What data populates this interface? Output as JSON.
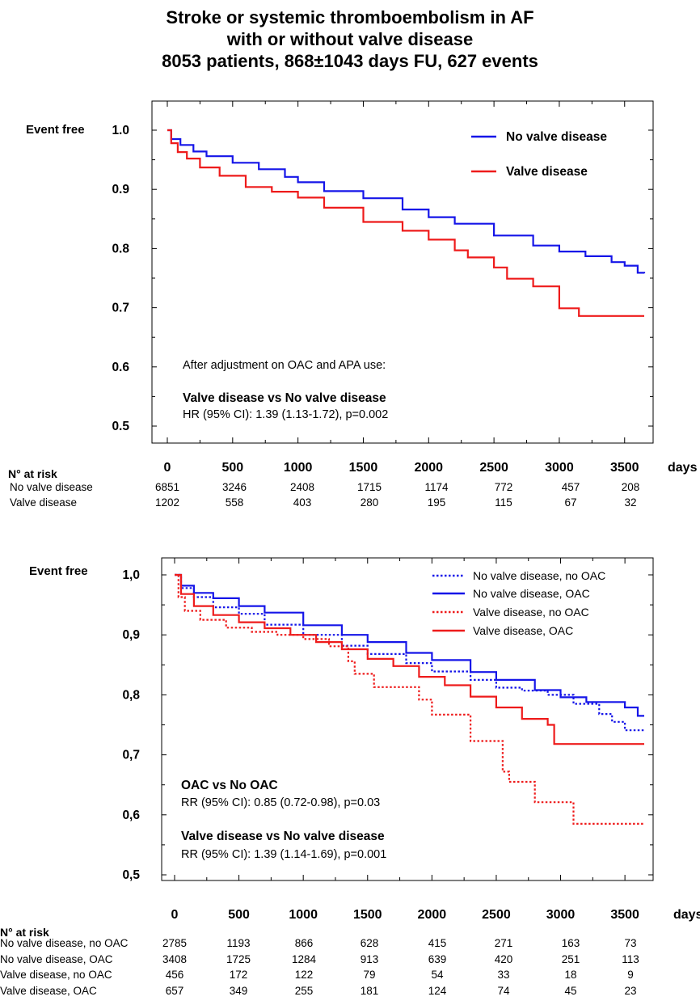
{
  "title": {
    "line1": "Stroke or systemic thromboembolism in AF",
    "line2": "with or without valve disease",
    "line3": "8053 patients, 868±1043 days FU, 627 events"
  },
  "colors": {
    "blue": "#1515e8",
    "red": "#ee1b1b"
  },
  "chart_data": [
    {
      "type": "line",
      "ylabel": "Event free",
      "xlabel": "days",
      "xlim": [
        0,
        3650
      ],
      "ylim": [
        0.5,
        1.0
      ],
      "y_tick_labels": [
        "1.0",
        "0.9",
        "0.8",
        "0.7",
        "0.6",
        "0.5"
      ],
      "x_tick_labels": [
        "0",
        "500",
        "1000",
        "1500",
        "2000",
        "2500",
        "3000",
        "3500"
      ],
      "legend_position": "top-right",
      "series": [
        {
          "name": "No valve disease",
          "color": "blue",
          "style": "solid",
          "x": [
            0,
            30,
            100,
            200,
            300,
            500,
            700,
            900,
            1000,
            1200,
            1500,
            1800,
            2000,
            2200,
            2500,
            2800,
            3000,
            3200,
            3400,
            3500,
            3600,
            3650
          ],
          "y": [
            1.0,
            0.985,
            0.975,
            0.964,
            0.956,
            0.945,
            0.934,
            0.921,
            0.912,
            0.897,
            0.885,
            0.866,
            0.853,
            0.842,
            0.822,
            0.805,
            0.795,
            0.787,
            0.777,
            0.771,
            0.759,
            0.758
          ]
        },
        {
          "name": "Valve disease",
          "color": "red",
          "style": "solid",
          "x": [
            0,
            30,
            80,
            150,
            250,
            400,
            600,
            800,
            1000,
            1200,
            1500,
            1800,
            2000,
            2200,
            2300,
            2500,
            2600,
            2800,
            3000,
            3150,
            3650
          ],
          "y": [
            1.0,
            0.978,
            0.963,
            0.952,
            0.937,
            0.923,
            0.904,
            0.896,
            0.886,
            0.869,
            0.845,
            0.83,
            0.815,
            0.797,
            0.785,
            0.768,
            0.749,
            0.736,
            0.699,
            0.686,
            0.686
          ]
        }
      ],
      "annotations": [
        "After adjustment on OAC and APA use:",
        "Valve disease vs No valve disease",
        "HR (95% CI): 1.39 (1.13-1.72), p=0.002"
      ],
      "at_risk": {
        "header": "N°   at risk",
        "rows": [
          {
            "label": "No valve disease",
            "values": [
              "6851",
              "3246",
              "2408",
              "1715",
              "1174",
              "772",
              "457",
              "208"
            ]
          },
          {
            "label": "Valve disease",
            "values": [
              "1202",
              "558",
              "403",
              "280",
              "195",
              "115",
              "67",
              "32"
            ]
          }
        ]
      }
    },
    {
      "type": "line",
      "ylabel": "Event free",
      "xlabel": "days",
      "xlim": [
        0,
        3650
      ],
      "ylim": [
        0.5,
        1.0
      ],
      "y_tick_labels": [
        "1,0",
        "0,9",
        "0,8",
        "0,7",
        "0,6",
        "0,5"
      ],
      "x_tick_labels": [
        "0",
        "500",
        "1000",
        "1500",
        "2000",
        "2500",
        "3000",
        "3500"
      ],
      "legend_position": "top-right",
      "series": [
        {
          "name": "No valve disease,  no OAC",
          "color": "blue",
          "style": "dotted",
          "x": [
            0,
            50,
            150,
            300,
            500,
            700,
            1000,
            1300,
            1500,
            1800,
            2000,
            2300,
            2500,
            2700,
            2900,
            3100,
            3300,
            3400,
            3500,
            3650
          ],
          "y": [
            1.0,
            0.978,
            0.963,
            0.946,
            0.935,
            0.917,
            0.9,
            0.882,
            0.868,
            0.853,
            0.839,
            0.825,
            0.812,
            0.807,
            0.8,
            0.785,
            0.768,
            0.755,
            0.741,
            0.741
          ]
        },
        {
          "name": "No valve disease,  OAC",
          "color": "blue",
          "style": "solid",
          "x": [
            0,
            50,
            150,
            300,
            500,
            700,
            1000,
            1300,
            1500,
            1800,
            2000,
            2300,
            2500,
            2800,
            3000,
            3200,
            3500,
            3600,
            3650
          ],
          "y": [
            1.0,
            0.982,
            0.97,
            0.961,
            0.948,
            0.937,
            0.916,
            0.9,
            0.888,
            0.87,
            0.858,
            0.838,
            0.825,
            0.808,
            0.796,
            0.788,
            0.779,
            0.765,
            0.765
          ]
        },
        {
          "name": "Valve disease,  no OAC",
          "color": "red",
          "style": "dotted",
          "x": [
            0,
            30,
            80,
            200,
            400,
            600,
            800,
            1000,
            1200,
            1350,
            1400,
            1550,
            1900,
            2000,
            2300,
            2550,
            2600,
            2800,
            3100,
            3650
          ],
          "y": [
            1.0,
            0.963,
            0.94,
            0.925,
            0.912,
            0.905,
            0.9,
            0.893,
            0.881,
            0.856,
            0.835,
            0.813,
            0.792,
            0.767,
            0.723,
            0.672,
            0.655,
            0.621,
            0.585,
            0.585
          ]
        },
        {
          "name": "Valve disease,  OAC",
          "color": "red",
          "style": "solid",
          "x": [
            0,
            50,
            150,
            300,
            500,
            700,
            900,
            1100,
            1300,
            1500,
            1700,
            1900,
            2100,
            2300,
            2500,
            2700,
            2900,
            2950,
            3650
          ],
          "y": [
            1.0,
            0.968,
            0.948,
            0.933,
            0.921,
            0.911,
            0.9,
            0.888,
            0.876,
            0.86,
            0.848,
            0.83,
            0.816,
            0.797,
            0.779,
            0.76,
            0.75,
            0.718,
            0.718
          ]
        }
      ],
      "annotations": [
        "OAC vs No OAC",
        "RR (95% CI): 0.85 (0.72-0.98), p=0.03",
        "Valve disease vs No valve disease",
        "RR (95% CI): 1.39 (1.14-1.69), p=0.001"
      ],
      "at_risk": {
        "header": "N°   at risk",
        "rows": [
          {
            "label": "No valve disease, no OAC",
            "values": [
              "2785",
              "1193",
              "866",
              "628",
              "415",
              "271",
              "163",
              "73"
            ]
          },
          {
            "label": "No valve disease, OAC",
            "values": [
              "3408",
              "1725",
              "1284",
              "913",
              "639",
              "420",
              "251",
              "113"
            ]
          },
          {
            "label": "Valve disease, no OAC",
            "values": [
              "456",
              "172",
              "122",
              "79",
              "54",
              "33",
              "18",
              "9"
            ]
          },
          {
            "label": "Valve disease, OAC",
            "values": [
              "657",
              "349",
              "255",
              "181",
              "124",
              "74",
              "45",
              "23"
            ]
          }
        ]
      }
    }
  ]
}
